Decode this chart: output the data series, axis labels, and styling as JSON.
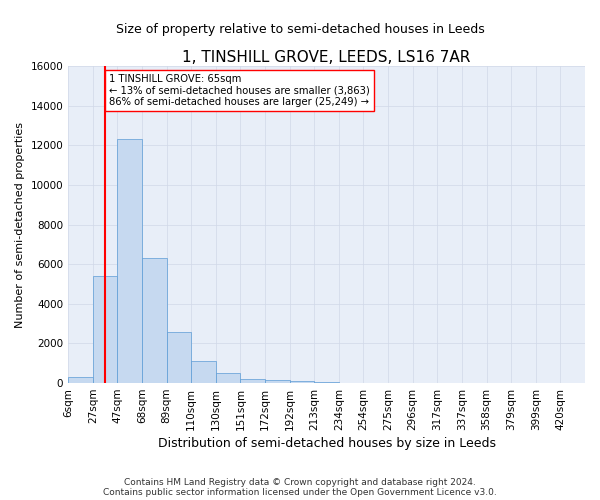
{
  "title": "1, TINSHILL GROVE, LEEDS, LS16 7AR",
  "subtitle": "Size of property relative to semi-detached houses in Leeds",
  "xlabel": "Distribution of semi-detached houses by size in Leeds",
  "ylabel": "Number of semi-detached properties",
  "footer_line1": "Contains HM Land Registry data © Crown copyright and database right 2024.",
  "footer_line2": "Contains public sector information licensed under the Open Government Licence v3.0.",
  "bin_labels": [
    "6sqm",
    "27sqm",
    "47sqm",
    "68sqm",
    "89sqm",
    "110sqm",
    "130sqm",
    "151sqm",
    "172sqm",
    "192sqm",
    "213sqm",
    "234sqm",
    "254sqm",
    "275sqm",
    "296sqm",
    "317sqm",
    "337sqm",
    "358sqm",
    "379sqm",
    "399sqm",
    "420sqm"
  ],
  "bar_values": [
    300,
    5400,
    12300,
    6300,
    2600,
    1100,
    500,
    200,
    150,
    100,
    50,
    0,
    0,
    0,
    0,
    0,
    0,
    0,
    0,
    0,
    0
  ],
  "bar_color": "#c6d9f0",
  "bar_edge_color": "#5b9bd5",
  "vline_pos": 1.5,
  "vline_color": "red",
  "annotation_text": "1 TINSHILL GROVE: 65sqm\n← 13% of semi-detached houses are smaller (3,863)\n86% of semi-detached houses are larger (25,249) →",
  "annotation_box_color": "white",
  "annotation_box_edge_color": "red",
  "ylim": [
    0,
    16000
  ],
  "yticks": [
    0,
    2000,
    4000,
    6000,
    8000,
    10000,
    12000,
    14000,
    16000
  ],
  "grid_color": "#d0d8e8",
  "background_color": "#e8eef8",
  "fig_background": "white",
  "title_fontsize": 11,
  "subtitle_fontsize": 9,
  "xlabel_fontsize": 9,
  "ylabel_fontsize": 8,
  "tick_fontsize": 7.5,
  "footer_fontsize": 6.5
}
